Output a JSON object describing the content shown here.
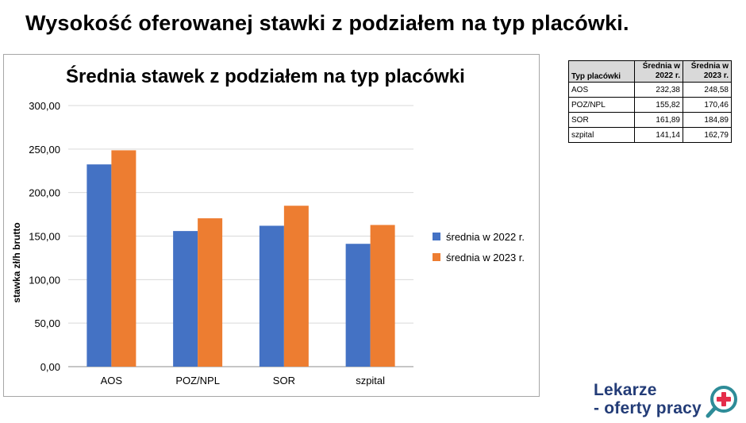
{
  "page": {
    "title": "Wysokość oferowanej stawki z podziałem na typ placówki."
  },
  "chart_data": {
    "type": "bar",
    "title": "Średnia stawek z podziałem na typ placówki",
    "xlabel": "",
    "ylabel": "stawka zł/h brutto",
    "categories": [
      "AOS",
      "POZ/NPL",
      "SOR",
      "szpital"
    ],
    "series": [
      {
        "name": "średnia w 2022 r.",
        "values": [
          232.38,
          155.82,
          161.89,
          141.14
        ],
        "color": "#4472c4"
      },
      {
        "name": "średnia w 2023 r.",
        "values": [
          248.58,
          170.46,
          184.89,
          162.79
        ],
        "color": "#ed7d31"
      }
    ],
    "ylim": [
      0,
      300
    ],
    "yticks": [
      "0,00",
      "50,00",
      "100,00",
      "150,00",
      "200,00",
      "250,00",
      "300,00"
    ],
    "grid": true,
    "legend_position": "right"
  },
  "table": {
    "headers": [
      "Typ placówki",
      "Średnia w 2022 r.",
      "Średnia w 2023 r."
    ],
    "rows": [
      {
        "name": "AOS",
        "v2022": "232,38",
        "v2023": "248,58"
      },
      {
        "name": "POZ/NPL",
        "v2022": "155,82",
        "v2023": "170,46"
      },
      {
        "name": "SOR",
        "v2022": "161,89",
        "v2023": "184,89"
      },
      {
        "name": "szpital",
        "v2022": "141,14",
        "v2023": "162,79"
      }
    ]
  },
  "logo": {
    "line1": "Lekarze",
    "line2": "- oferty pracy",
    "icon": "magnifier-plus-icon",
    "colors": {
      "text": "#233c77",
      "ring": "#2e8c98",
      "plus": "#e52d4a"
    }
  }
}
